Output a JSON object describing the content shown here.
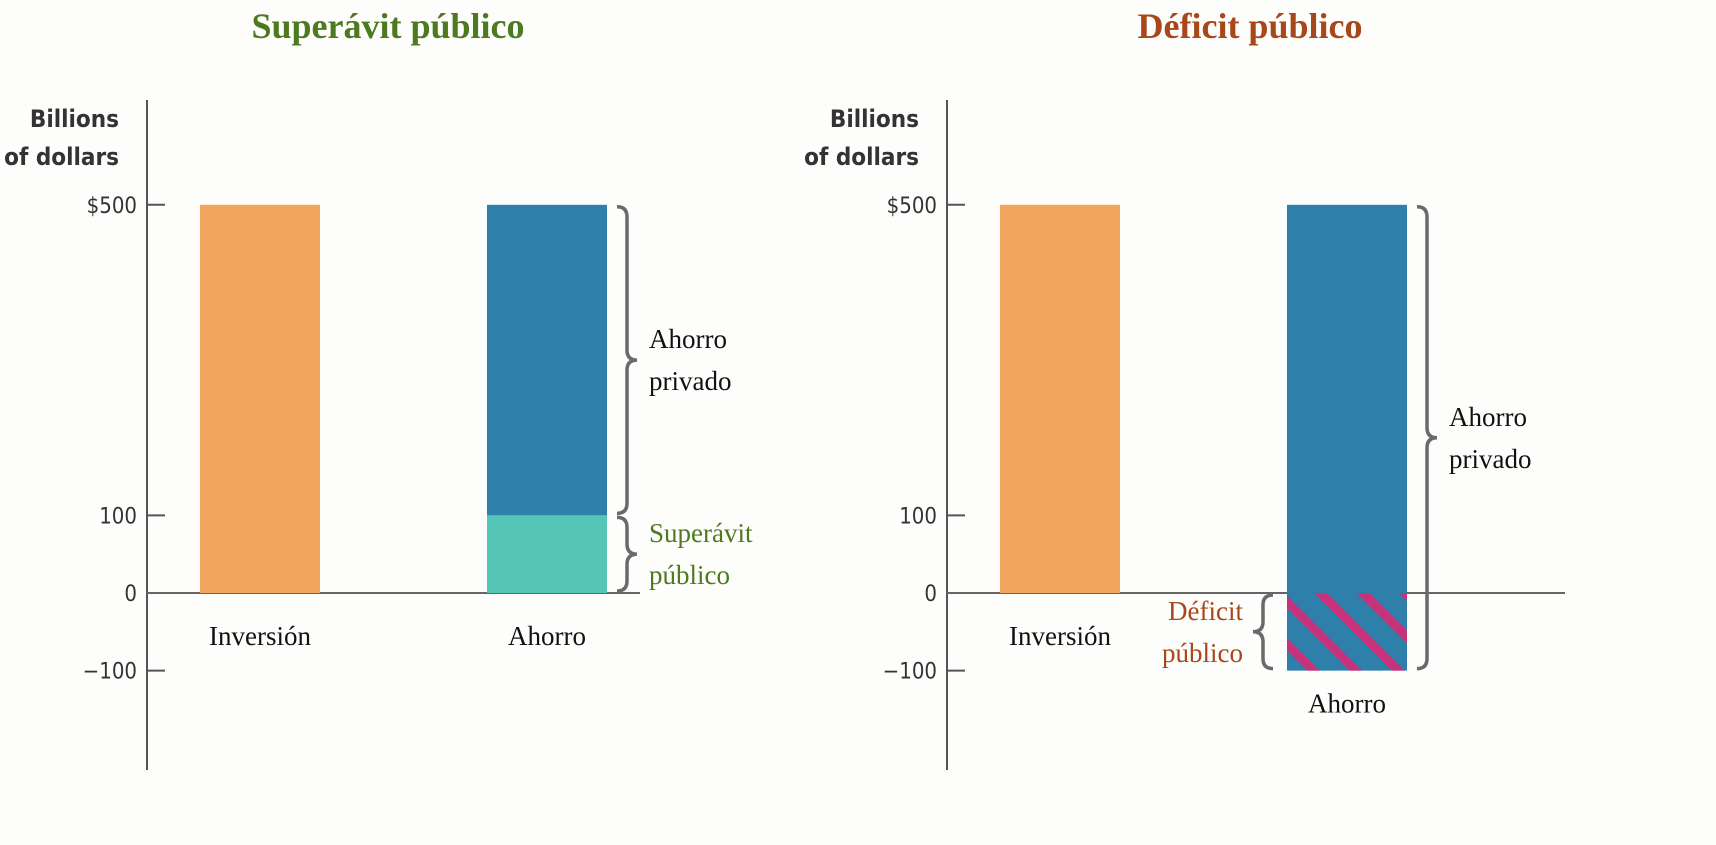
{
  "chart_data": [
    {
      "type": "stacked_bar",
      "title": "Superávit público",
      "title_color": "#4d7a1f",
      "ylabel": [
        "Billions",
        "of dollars"
      ],
      "categories": [
        "Inversión",
        "Ahorro"
      ],
      "series": [
        {
          "color": "#f2a55c",
          "values": [
            500,
            null
          ]
        },
        {
          "name": "Superávit público",
          "color": "#55c6b6",
          "label_color": "#4d7a1f",
          "values": [
            null,
            100
          ]
        },
        {
          "name": "Ahorro privado",
          "color": "#2e7faa",
          "label_color": "#111111",
          "values": [
            null,
            400
          ]
        }
      ],
      "ylim": [
        -228,
        635
      ],
      "yticks": [
        {
          "value": 500,
          "label": "$500"
        },
        100,
        0,
        {
          "value": -100,
          "label": "−100"
        }
      ]
    },
    {
      "type": "stacked_bar",
      "title": "Déficit público",
      "title_color": "#a8471a",
      "ylabel": [
        "Billions",
        "of dollars"
      ],
      "categories": [
        "Inversión",
        "Ahorro"
      ],
      "series": [
        {
          "color": "#f2a55c",
          "values": [
            500,
            null
          ]
        },
        {
          "name": "Déficit público",
          "color": "#c8327a",
          "label_color": "#a8471a",
          "pattern": "hatch",
          "label_side": "left",
          "values": [
            null,
            -100
          ]
        },
        {
          "name": "Ahorro privado",
          "color": "#2e7faa",
          "label_color": "#111111",
          "values": [
            null,
            600
          ]
        }
      ],
      "ylim": [
        -228,
        635
      ],
      "yticks": [
        {
          "value": 500,
          "label": "$500"
        },
        100,
        0,
        {
          "value": -100,
          "label": "−100"
        }
      ]
    }
  ]
}
